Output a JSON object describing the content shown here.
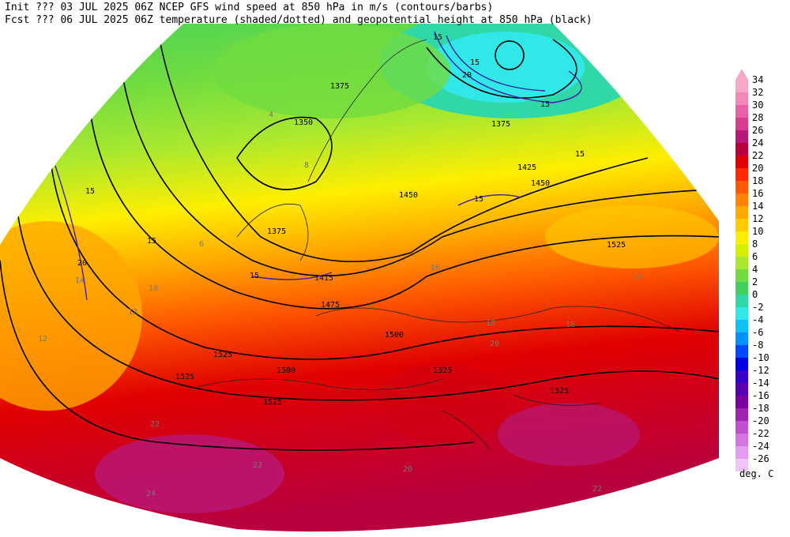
{
  "header": {
    "line1": "Init  ??? 03 JUL 2025 06Z  NCEP GFS wind speed at 850 hPa in m/s (contours/barbs)",
    "line2": "Fcst ??? 06 JUL 2025 06Z  temperature (shaded/dotted) and geopotential height at 850 hPa (black)"
  },
  "colorbar": {
    "labels": [
      34,
      32,
      30,
      28,
      26,
      24,
      22,
      20,
      18,
      16,
      14,
      12,
      10,
      8,
      6,
      4,
      2,
      0,
      -2,
      -4,
      -6,
      -8,
      -10,
      -12,
      -14,
      -16,
      -18,
      -20,
      -22,
      -24,
      -26
    ],
    "colors": [
      "#f7a8c8",
      "#f088b8",
      "#e860a8",
      "#d83c90",
      "#b81878",
      "#b80040",
      "#e00000",
      "#ff2a00",
      "#ff5a00",
      "#ff8200",
      "#ffa800",
      "#ffcc00",
      "#ffee00",
      "#d4f000",
      "#a8e830",
      "#70dc40",
      "#40d060",
      "#30d8a8",
      "#30e8e8",
      "#10c0f8",
      "#0090ff",
      "#0048ff",
      "#0000e0",
      "#3800c8",
      "#5800b0",
      "#7c00a0",
      "#a024b0",
      "#c050d0",
      "#d474e0",
      "#e49cf0",
      "#f0c4f8"
    ],
    "unit": "deg. C"
  },
  "map": {
    "height_labels": [
      "1375",
      "1350",
      "1375",
      "1375",
      "1425",
      "1450",
      "1450",
      "1475",
      "1500",
      "1500",
      "1525",
      "1525",
      "1525",
      "1525",
      "1525",
      "1525",
      "1415"
    ],
    "wind_labels": [
      "15",
      "15",
      "20",
      "15",
      "15",
      "15",
      "15",
      "15",
      "20",
      "15"
    ],
    "temp_labels": [
      "4",
      "6",
      "8",
      "10",
      "12",
      "14",
      "16",
      "18",
      "20",
      "22",
      "22",
      "24",
      "22",
      "20",
      "16",
      "14",
      "12"
    ]
  }
}
